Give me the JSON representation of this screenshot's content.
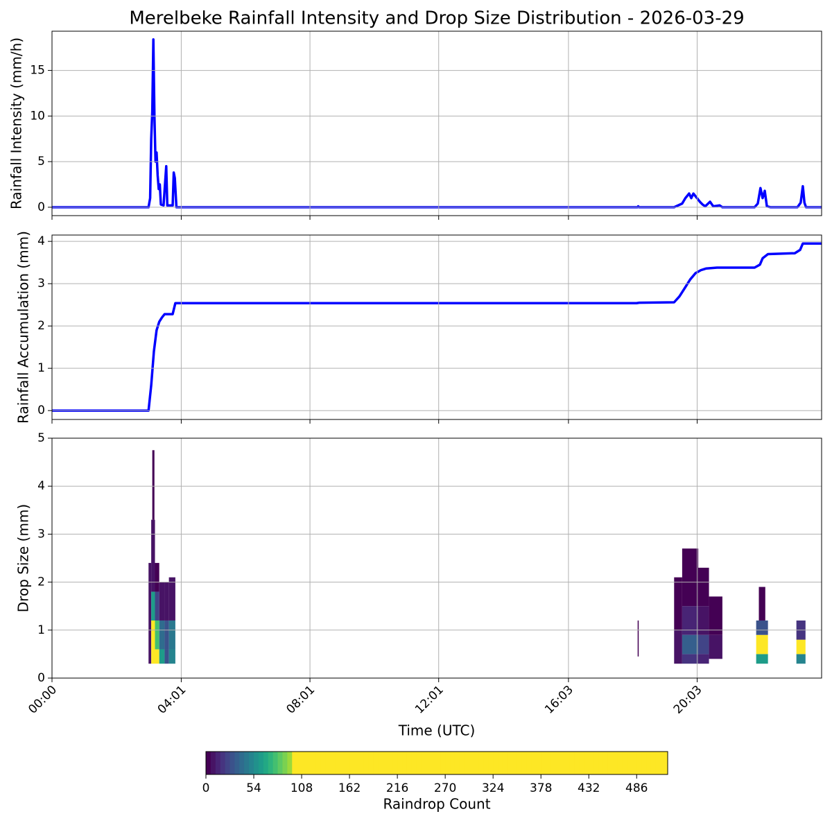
{
  "chart_data": [
    {
      "type": "line",
      "title": "Merelbeke Rainfall Intensity and Drop Size Distribution - 2026-03-29",
      "ylabel": "Rainfall Intensity (mm/h)",
      "color": "#0000ff",
      "grid": true,
      "ylim": [
        -0.92,
        19.3
      ],
      "yticks": [
        0,
        5,
        10,
        15
      ],
      "x": [
        "00:00",
        "03:00",
        "03:03",
        "03:05",
        "03:07",
        "03:09",
        "03:11",
        "03:13",
        "03:15",
        "03:17",
        "03:19",
        "03:21",
        "03:23",
        "03:28",
        "03:33",
        "03:35",
        "03:45",
        "03:47",
        "03:49",
        "03:52",
        "18:12",
        "18:13",
        "18:15",
        "19:20",
        "19:35",
        "19:41",
        "19:48",
        "19:52",
        "19:56",
        "20:00",
        "20:04",
        "20:08",
        "20:13",
        "20:18",
        "20:27",
        "20:33",
        "20:45",
        "20:50",
        "21:50",
        "21:56",
        "22:01",
        "22:05",
        "22:09",
        "22:13",
        "22:20",
        "23:10",
        "23:16",
        "23:20",
        "23:23",
        "23:26",
        "23:55"
      ],
      "values": [
        0,
        0,
        1,
        7.5,
        10.5,
        18.4,
        10,
        5,
        6,
        3.5,
        2,
        2.5,
        0.3,
        0.2,
        4.5,
        0.2,
        0.2,
        3.8,
        3.2,
        0,
        0,
        0.1,
        0,
        0,
        0.4,
        1.0,
        1.5,
        1.0,
        1.5,
        1.2,
        0.9,
        0.6,
        0.3,
        0.1,
        0.6,
        0.1,
        0.2,
        0,
        0,
        0.4,
        2.1,
        1.0,
        1.8,
        0.1,
        0,
        0,
        0.5,
        2.3,
        0.5,
        0,
        0
      ]
    },
    {
      "type": "line",
      "ylabel": "Rainfall Accumulation (mm)",
      "color": "#0000ff",
      "grid": true,
      "ylim": [
        -0.21,
        4.15
      ],
      "yticks": [
        0,
        1,
        2,
        3,
        4
      ],
      "x": [
        "00:00",
        "03:00",
        "03:05",
        "03:10",
        "03:15",
        "03:20",
        "03:25",
        "03:30",
        "03:45",
        "03:50",
        "18:10",
        "18:15",
        "19:20",
        "19:30",
        "19:40",
        "19:50",
        "20:00",
        "20:10",
        "20:20",
        "20:40",
        "21:50",
        "22:00",
        "22:05",
        "22:15",
        "23:05",
        "23:15",
        "23:20",
        "23:55"
      ],
      "values": [
        0,
        0,
        0.6,
        1.4,
        1.9,
        2.1,
        2.2,
        2.28,
        2.28,
        2.54,
        2.54,
        2.55,
        2.56,
        2.7,
        2.9,
        3.1,
        3.25,
        3.32,
        3.36,
        3.38,
        3.38,
        3.45,
        3.6,
        3.7,
        3.72,
        3.8,
        3.95,
        3.95
      ]
    },
    {
      "type": "heatmap",
      "ylabel": "Drop Size (mm)",
      "xlabel": "Time (UTC)",
      "grid": true,
      "xlim": [
        "00:00",
        "23:55"
      ],
      "xticks": [
        "00:00",
        "04:01",
        "08:01",
        "12:01",
        "16:03",
        "20:03"
      ],
      "ylim": [
        0,
        5
      ],
      "yticks": [
        0,
        1,
        2,
        3,
        4,
        5
      ],
      "cells": [
        {
          "t": [
            "03:00",
            "03:05"
          ],
          "d": [
            0.3,
            2.4
          ],
          "count": 10
        },
        {
          "t": [
            "03:05",
            "03:12"
          ],
          "d": [
            0.3,
            0.6
          ],
          "count": 150
        },
        {
          "t": [
            "03:05",
            "03:12"
          ],
          "d": [
            0.6,
            1.2
          ],
          "count": 120
        },
        {
          "t": [
            "03:05",
            "03:12"
          ],
          "d": [
            1.2,
            1.8
          ],
          "count": 60
        },
        {
          "t": [
            "03:05",
            "03:12"
          ],
          "d": [
            1.8,
            3.3
          ],
          "count": 10
        },
        {
          "t": [
            "03:07",
            "03:11"
          ],
          "d": [
            3.3,
            4.75
          ],
          "count": 2
        },
        {
          "t": [
            "03:12",
            "03:20"
          ],
          "d": [
            0.3,
            0.6
          ],
          "count": 150
        },
        {
          "t": [
            "03:12",
            "03:20"
          ],
          "d": [
            0.6,
            1.2
          ],
          "count": 80
        },
        {
          "t": [
            "03:12",
            "03:20"
          ],
          "d": [
            1.2,
            1.8
          ],
          "count": 25
        },
        {
          "t": [
            "03:12",
            "03:20"
          ],
          "d": [
            1.8,
            2.4
          ],
          "count": 5
        },
        {
          "t": [
            "03:20",
            "03:30"
          ],
          "d": [
            0.3,
            0.6
          ],
          "count": 60
        },
        {
          "t": [
            "03:20",
            "03:30"
          ],
          "d": [
            0.6,
            1.2
          ],
          "count": 40
        },
        {
          "t": [
            "03:20",
            "03:30"
          ],
          "d": [
            1.2,
            2.0
          ],
          "count": 8
        },
        {
          "t": [
            "03:30",
            "03:38"
          ],
          "d": [
            0.3,
            0.6
          ],
          "count": 30
        },
        {
          "t": [
            "03:30",
            "03:38"
          ],
          "d": [
            0.6,
            1.2
          ],
          "count": 30
        },
        {
          "t": [
            "03:30",
            "03:38"
          ],
          "d": [
            1.2,
            2.0
          ],
          "count": 6
        },
        {
          "t": [
            "03:38",
            "03:50"
          ],
          "d": [
            0.3,
            0.6
          ],
          "count": 50
        },
        {
          "t": [
            "03:38",
            "03:50"
          ],
          "d": [
            0.6,
            1.2
          ],
          "count": 45
        },
        {
          "t": [
            "03:38",
            "03:50"
          ],
          "d": [
            1.2,
            2.1
          ],
          "count": 8
        },
        {
          "t": [
            "18:12",
            "18:14"
          ],
          "d": [
            0.45,
            1.2
          ],
          "count": 2
        },
        {
          "t": [
            "19:20",
            "19:35"
          ],
          "d": [
            0.3,
            1.0
          ],
          "count": 8
        },
        {
          "t": [
            "19:20",
            "19:35"
          ],
          "d": [
            1.0,
            2.1
          ],
          "count": 2
        },
        {
          "t": [
            "19:35",
            "20:05"
          ],
          "d": [
            0.3,
            0.5
          ],
          "count": 20
        },
        {
          "t": [
            "19:35",
            "20:05"
          ],
          "d": [
            0.5,
            0.9
          ],
          "count": 35
        },
        {
          "t": [
            "19:35",
            "20:05"
          ],
          "d": [
            0.9,
            1.5
          ],
          "count": 12
        },
        {
          "t": [
            "19:35",
            "20:05"
          ],
          "d": [
            1.5,
            2.7
          ],
          "count": 3
        },
        {
          "t": [
            "20:05",
            "20:25"
          ],
          "d": [
            0.3,
            0.5
          ],
          "count": 15
        },
        {
          "t": [
            "20:05",
            "20:25"
          ],
          "d": [
            0.5,
            0.9
          ],
          "count": 25
        },
        {
          "t": [
            "20:05",
            "20:25"
          ],
          "d": [
            0.9,
            1.5
          ],
          "count": 6
        },
        {
          "t": [
            "20:05",
            "20:25"
          ],
          "d": [
            1.5,
            2.3
          ],
          "count": 2
        },
        {
          "t": [
            "20:25",
            "20:50"
          ],
          "d": [
            0.4,
            0.9
          ],
          "count": 8
        },
        {
          "t": [
            "20:25",
            "20:50"
          ],
          "d": [
            0.9,
            1.7
          ],
          "count": 2
        },
        {
          "t": [
            "21:53",
            "22:15"
          ],
          "d": [
            0.3,
            0.5
          ],
          "count": 60
        },
        {
          "t": [
            "21:53",
            "22:15"
          ],
          "d": [
            0.5,
            0.9
          ],
          "count": 110
        },
        {
          "t": [
            "21:53",
            "22:15"
          ],
          "d": [
            0.9,
            1.2
          ],
          "count": 30
        },
        {
          "t": [
            "21:58",
            "22:10"
          ],
          "d": [
            1.2,
            1.9
          ],
          "count": 3
        },
        {
          "t": [
            "23:08",
            "23:25"
          ],
          "d": [
            0.3,
            0.5
          ],
          "count": 50
        },
        {
          "t": [
            "23:08",
            "23:25"
          ],
          "d": [
            0.5,
            0.8
          ],
          "count": 120
        },
        {
          "t": [
            "23:08",
            "23:25"
          ],
          "d": [
            0.8,
            1.2
          ],
          "count": 20
        }
      ],
      "colorbar": {
        "label": "Raindrop Count",
        "lim": [
          0,
          521
        ],
        "ticks": [
          0,
          54,
          108,
          162,
          216,
          270,
          324,
          378,
          432,
          486
        ],
        "step": 5.4,
        "colors": [
          "#440154",
          "#471365",
          "#482475",
          "#463480",
          "#414487",
          "#3b528b",
          "#355f8d",
          "#2f6c8e",
          "#2a788e",
          "#25848e",
          "#21918c",
          "#1e9c89",
          "#22a884",
          "#2fb47c",
          "#44bf70",
          "#5ec962",
          "#7ad151",
          "#9bd93c",
          "#fde725"
        ]
      }
    }
  ]
}
